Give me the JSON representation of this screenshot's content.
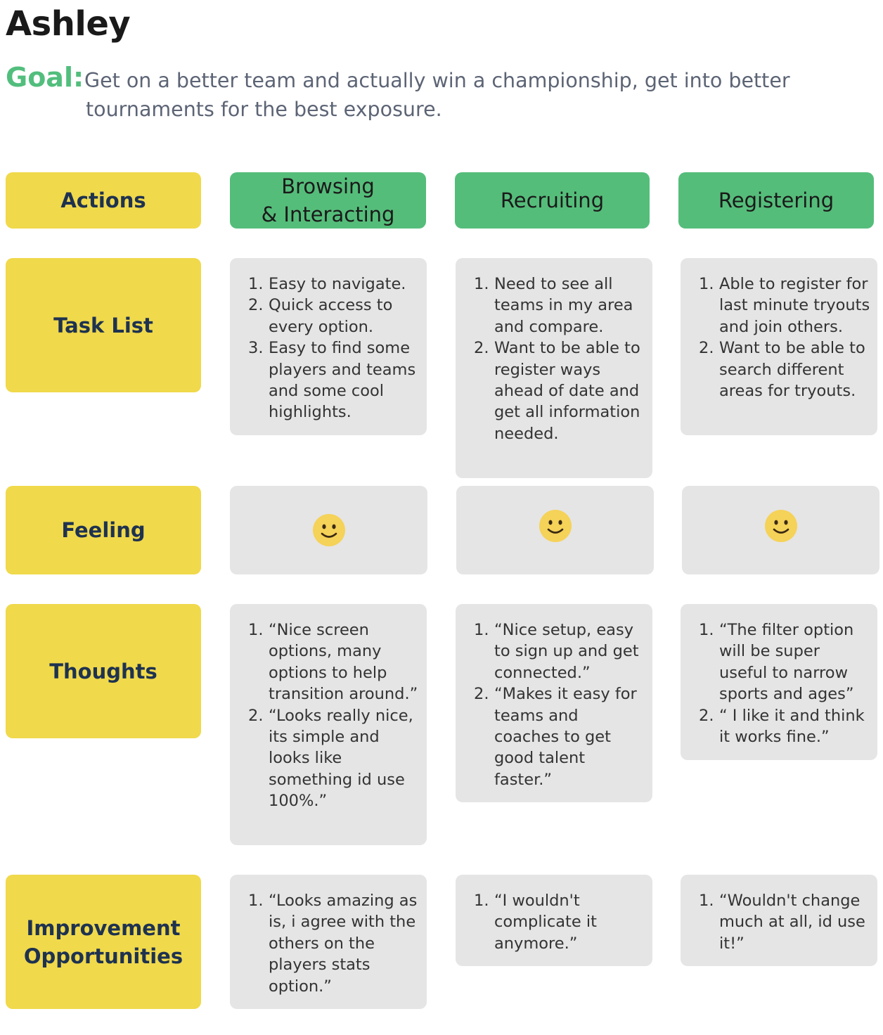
{
  "persona": "Ashley",
  "goal": {
    "label": "Goal:",
    "line1": "Get on a better team and actually win a championship, get into better",
    "line2": "tournaments for the best exposure."
  },
  "phases": [
    "Browsing\n& Interacting",
    "Recruiting",
    "Registering"
  ],
  "rows": {
    "actions": "Actions",
    "tasks": "Task List",
    "feeling": "Feeling",
    "thoughts": "Thoughts",
    "improvement": "Improvement\nOpportunities"
  },
  "tasks": [
    [
      "Easy to navigate.",
      "Quick access to every option.",
      "Easy to find some players and teams and some cool highlights."
    ],
    [
      " Need to see all teams in my area and compare.",
      "Want to be able to register ways ahead of date and get all information needed."
    ],
    [
      "Able to register for last minute tryouts and join others.",
      "Want to be able to search different areas for tryouts."
    ]
  ],
  "feelings": [
    {
      "icon": "smiley-face-icon",
      "mood": "happy"
    },
    {
      "icon": "smiley-face-icon",
      "mood": "happy"
    },
    {
      "icon": "smiley-face-icon",
      "mood": "happy"
    }
  ],
  "thoughts": [
    [
      "“Nice screen options, many options to help transition around.”",
      "“Looks really nice, its simple and looks like something id use 100%.”"
    ],
    [
      "“Nice setup, easy to sign up and get connected.”",
      "“Makes it easy for teams and coaches to get good talent faster.”"
    ],
    [
      "“The filter option will be super useful to narrow sports and ages”",
      "“ I like it and think it works fine.”"
    ]
  ],
  "improvements": [
    [
      "“Looks amazing as is, i agree with the others on the players stats option.”"
    ],
    [
      "“I wouldn't complicate it anymore.”"
    ],
    [
      "“Wouldn't change much at all, id use it!”"
    ]
  ],
  "colors": {
    "label_yellow": "#f0d94b",
    "phase_green": "#55bd7a",
    "goal_green": "#52be7d",
    "cell_gray": "#e5e5e5",
    "smiley_fill": "#f5d258"
  }
}
